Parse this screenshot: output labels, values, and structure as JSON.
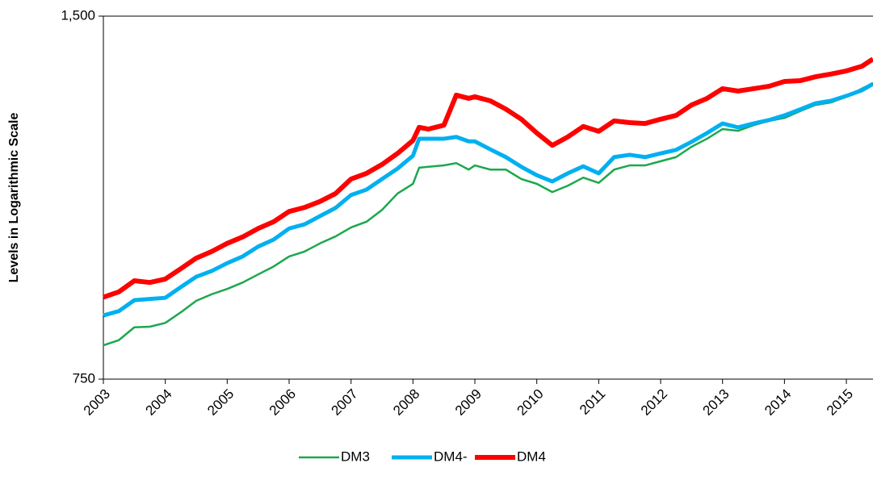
{
  "chart_data": {
    "type": "line",
    "y_label": "Levels in Logarithmic Scale",
    "log_scale": true,
    "legend": "bottom",
    "xlim": [
      2003,
      2015.43
    ],
    "xticks": [
      2003,
      2004,
      2005,
      2006,
      2007,
      2008,
      2009,
      2010,
      2011,
      2012,
      2013,
      2014,
      2015
    ],
    "ylim": [
      750,
      1500
    ],
    "yticks": [
      750,
      {
        "value": 1500,
        "label": "1,500"
      }
    ],
    "x": [
      2003,
      2003.25,
      2003.5,
      2003.75,
      2004,
      2004.25,
      2004.5,
      2004.75,
      2005,
      2005.25,
      2005.5,
      2005.75,
      2006,
      2006.25,
      2006.5,
      2006.75,
      2007,
      2007.25,
      2007.5,
      2007.75,
      2008,
      2008.1,
      2008.25,
      2008.5,
      2008.7,
      2008.9,
      2009,
      2009.25,
      2009.5,
      2009.75,
      2010,
      2010.25,
      2010.5,
      2010.75,
      2011,
      2011.25,
      2011.5,
      2011.75,
      2012,
      2012.25,
      2012.5,
      2012.75,
      2013,
      2013.25,
      2013.5,
      2013.75,
      2014,
      2014.25,
      2014.5,
      2014.75,
      2015,
      2015.25,
      2015.43
    ],
    "series": [
      {
        "name": "DM3",
        "color": "#1ca84c",
        "values": [
          800,
          808,
          828,
          829,
          835,
          852,
          871,
          882,
          891,
          902,
          916,
          930,
          948,
          957,
          972,
          985,
          1002,
          1013,
          1036,
          1069,
          1089,
          1123,
          1125,
          1128,
          1133,
          1119,
          1128,
          1119,
          1119,
          1099,
          1089,
          1072,
          1085,
          1102,
          1091,
          1119,
          1128,
          1128,
          1137,
          1146,
          1169,
          1187,
          1209,
          1205,
          1218,
          1228,
          1235,
          1251,
          1266,
          1272,
          1286,
          1306,
          1320
        ]
      },
      {
        "name": "DM4-",
        "color": "#00b0f0",
        "values": [
          847,
          854,
          872,
          874,
          876,
          894,
          912,
          922,
          936,
          948,
          966,
          979,
          1000,
          1008,
          1024,
          1040,
          1066,
          1077,
          1099,
          1121,
          1149,
          1187,
          1187,
          1187,
          1191,
          1181,
          1181,
          1163,
          1146,
          1125,
          1107,
          1094,
          1111,
          1126,
          1111,
          1146,
          1151,
          1146,
          1154,
          1162,
          1180,
          1200,
          1222,
          1213,
          1222,
          1230,
          1241,
          1255,
          1270,
          1276,
          1288,
          1302,
          1318
        ]
      },
      {
        "name": "DM4",
        "color": "#ff0000",
        "values": [
          877,
          886,
          905,
          902,
          908,
          926,
          945,
          957,
          972,
          984,
          1000,
          1013,
          1033,
          1041,
          1053,
          1069,
          1099,
          1111,
          1130,
          1154,
          1183,
          1213,
          1209,
          1218,
          1290,
          1282,
          1286,
          1276,
          1256,
          1232,
          1200,
          1172,
          1191,
          1215,
          1204,
          1228,
          1224,
          1222,
          1232,
          1241,
          1266,
          1282,
          1306,
          1300,
          1306,
          1312,
          1324,
          1326,
          1336,
          1343,
          1351,
          1363,
          1382
        ]
      }
    ]
  }
}
